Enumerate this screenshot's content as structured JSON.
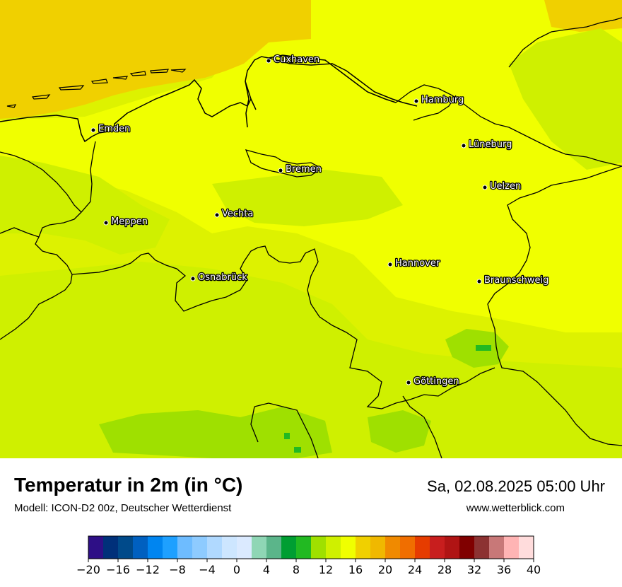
{
  "map": {
    "cities": [
      {
        "name": "Cuxhaven"
      },
      {
        "name": "Hamburg"
      },
      {
        "name": "Emden"
      },
      {
        "name": "Lüneburg"
      },
      {
        "name": "Bremen"
      },
      {
        "name": "Uelzen"
      },
      {
        "name": "Vechta"
      },
      {
        "name": "Meppen"
      },
      {
        "name": "Hannover"
      },
      {
        "name": "Osnabrück"
      },
      {
        "name": "Braunschweig"
      },
      {
        "name": "Göttingen"
      }
    ],
    "colors": {
      "sea": "#f0d000",
      "land_warm": "#f0ff00",
      "land_mid": "#ddf200",
      "land_cool": "#cff000",
      "land_cold": "#9fe000",
      "green_spot": "#22b922"
    }
  },
  "header": {
    "title": "Temperatur in 2m (in °C)",
    "subtitle": "Modell: ICON-D2 00z, Deutscher Wetterdienst",
    "datetime": "Sa, 02.08.2025 05:00 Uhr",
    "website": "www.wetterblick.com"
  },
  "colorbar": {
    "min": -20,
    "max": 40,
    "step": 2,
    "colors": [
      "#2e0f86",
      "#00307a",
      "#004a8a",
      "#0060c0",
      "#0085f0",
      "#1ea0ff",
      "#6ebcff",
      "#8ecbff",
      "#b0d9ff",
      "#cde6ff",
      "#dbeaff",
      "#8fd6b5",
      "#5bb58a",
      "#009e32",
      "#22b922",
      "#9fe000",
      "#cff000",
      "#f0ff00",
      "#f0d000",
      "#f0b800",
      "#f08a00",
      "#f06e00",
      "#e63c00",
      "#c81e1e",
      "#b01414",
      "#800000",
      "#8c3232",
      "#c87878",
      "#ffb4b4",
      "#ffdcdc"
    ],
    "tick_labels": [
      "−20",
      "−16",
      "−12",
      "−8",
      "−4",
      "0",
      "4",
      "8",
      "12",
      "16",
      "20",
      "24",
      "28",
      "32",
      "36",
      "40"
    ]
  }
}
